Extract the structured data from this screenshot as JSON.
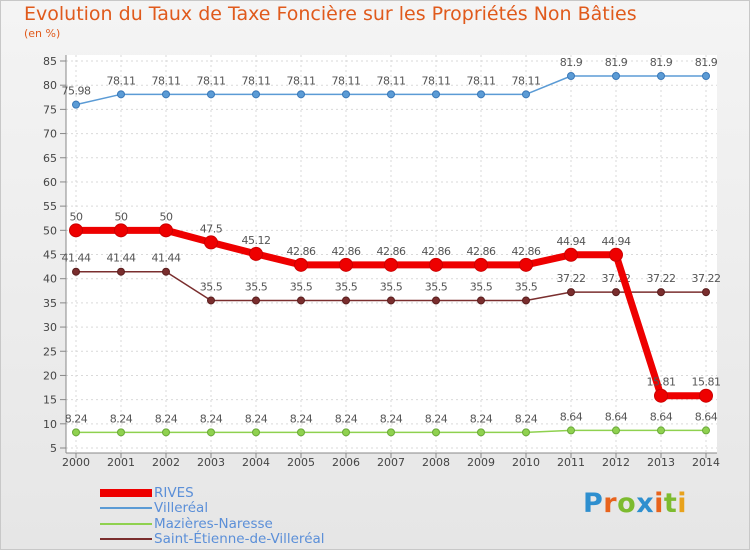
{
  "title": "Evolution du Taux de Taxe Foncière sur les Propriétés Non Bâties",
  "unit_label": "(en %)",
  "brand": {
    "text": "Proxiti",
    "letters": [
      "P",
      "r",
      "o",
      "x",
      "i",
      "t",
      "i"
    ],
    "colors": [
      "#2e8fcf",
      "#e8631c",
      "#7dbb2f",
      "#2e8fcf",
      "#e8631c",
      "#7dbb2f",
      "#e8a21c"
    ]
  },
  "chart_data": {
    "type": "line",
    "title": "Evolution du Taux de Taxe Foncière sur les Propriétés Non Bâties",
    "ylabel": "(en %)",
    "xlabel": "",
    "ylim": [
      5,
      85
    ],
    "yticks": [
      5,
      10,
      15,
      20,
      25,
      30,
      35,
      40,
      45,
      50,
      55,
      60,
      65,
      70,
      75,
      80,
      85
    ],
    "grid": true,
    "legend": "bottom-left",
    "x": [
      "2000",
      "2001",
      "2002",
      "2003",
      "2004",
      "2005",
      "2006",
      "2007",
      "2008",
      "2009",
      "2010",
      "2011",
      "2012",
      "2013",
      "2014"
    ],
    "series": [
      {
        "name": "RIVES",
        "color": "#ee0000",
        "labels": [
          "50",
          "50",
          "50",
          "47.5",
          "45.12",
          "42.86",
          "42.86",
          "42.86",
          "42.86",
          "42.86",
          "42.86",
          "44.94",
          "44.94",
          "15.81",
          "15.81"
        ],
        "values": [
          50,
          50,
          50,
          47.5,
          45.12,
          42.86,
          42.86,
          42.86,
          42.86,
          42.86,
          42.86,
          44.94,
          44.94,
          15.81,
          15.81
        ]
      },
      {
        "name": "Villeréal",
        "color": "#5b9bd5",
        "labels": [
          "75.98",
          "78.11",
          "78.11",
          "78.11",
          "78.11",
          "78.11",
          "78.11",
          "78.11",
          "78.11",
          "78.11",
          "78.11",
          "81.9",
          "81.9",
          "81.9",
          "81.9"
        ],
        "values": [
          75.98,
          78.11,
          78.11,
          78.11,
          78.11,
          78.11,
          78.11,
          78.11,
          78.11,
          78.11,
          78.11,
          81.9,
          81.9,
          81.9,
          81.9
        ]
      },
      {
        "name": "Mazières-Naresse",
        "color": "#8fd14f",
        "labels": [
          "8.24",
          "8.24",
          "8.24",
          "8.24",
          "8.24",
          "8.24",
          "8.24",
          "8.24",
          "8.24",
          "8.24",
          "8.24",
          "8.64",
          "8.64",
          "8.64",
          "8.64"
        ],
        "values": [
          8.24,
          8.24,
          8.24,
          8.24,
          8.24,
          8.24,
          8.24,
          8.24,
          8.24,
          8.24,
          8.24,
          8.64,
          8.64,
          8.64,
          8.64
        ]
      },
      {
        "name": "Saint-Étienne-de-Villeréal",
        "color": "#7a2e2e",
        "labels": [
          "41.44",
          "41.44",
          "41.44",
          "35.5",
          "35.5",
          "35.5",
          "35.5",
          "35.5",
          "35.5",
          "35.5",
          "35.5",
          "37.22",
          "37.22",
          "37.22",
          "37.22"
        ],
        "values": [
          41.44,
          41.44,
          41.44,
          35.5,
          35.5,
          35.5,
          35.5,
          35.5,
          35.5,
          35.5,
          35.5,
          37.22,
          37.22,
          37.22,
          37.22
        ]
      }
    ]
  }
}
